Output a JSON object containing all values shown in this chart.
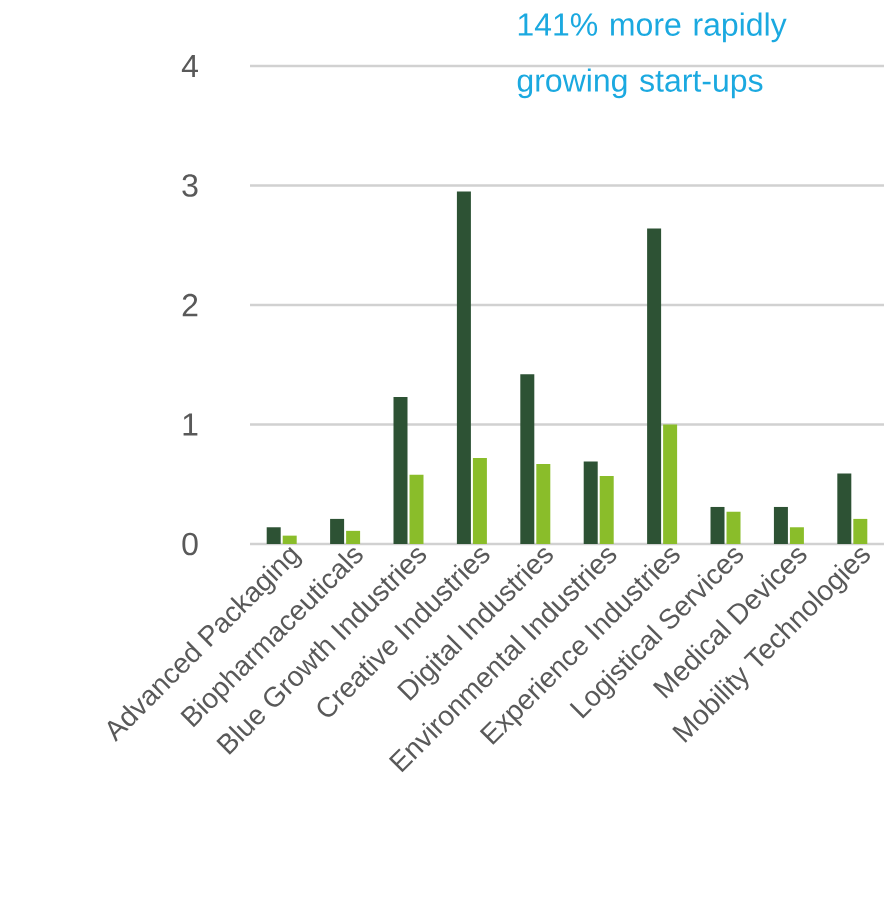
{
  "chart_data": {
    "type": "bar",
    "categories": [
      "Advanced Packaging",
      "Biopharmaceuticals",
      "Blue Growth Industries",
      "Creative Industries",
      "Digital Industries",
      "Environmental Industries",
      "Experience Industries",
      "Logistical Services",
      "Medical Devices",
      "Mobility Technologies"
    ],
    "series": [
      {
        "color": "#2d5234",
        "values": [
          0.14,
          0.21,
          1.23,
          2.95,
          1.42,
          0.69,
          2.64,
          0.31,
          0.31,
          0.59
        ]
      },
      {
        "color": "#8abd2a",
        "values": [
          0.07,
          0.11,
          0.58,
          0.72,
          0.67,
          0.57,
          1.0,
          0.27,
          0.14,
          0.21
        ]
      }
    ],
    "ylim": [
      0,
      4
    ],
    "yticks": [
      0,
      1,
      2,
      3,
      4
    ],
    "grid": "y",
    "annotations": [
      "141% more rapidly growing start-ups"
    ]
  }
}
